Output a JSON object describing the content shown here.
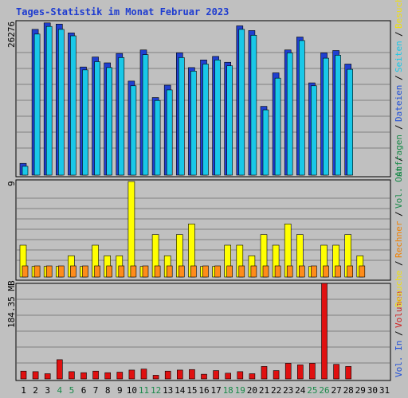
{
  "chart_data": [
    {
      "type": "bar",
      "title": "Tages-Statistik im Monat Februar 2023",
      "ylabel_max": "26276",
      "right_legend": [
        {
          "text": "Anfragen",
          "color": "#1a8a4a"
        },
        {
          "text": "/",
          "color": "#000000"
        },
        {
          "text": "Dateien",
          "color": "#1f4fd8"
        },
        {
          "text": "/",
          "color": "#000000"
        },
        {
          "text": "Seiten",
          "color": "#19c8e8"
        },
        {
          "text": "/",
          "color": "#000000"
        },
        {
          "text": "Besuche",
          "color": "#f0e010"
        }
      ],
      "series": [
        {
          "name": "Anfragen",
          "color": "#2040d0",
          "values": [
            2000,
            24800,
            25900,
            25700,
            24200,
            18400,
            20100,
            19100,
            20700,
            16000,
            21300,
            13200,
            15300,
            20800,
            18300,
            19600,
            20200,
            19200,
            25400,
            24600,
            11700,
            17400,
            21300,
            23500,
            15700,
            20800,
            21200,
            18900
          ]
        },
        {
          "name": "Seiten",
          "color": "#19c8e8",
          "values": [
            1500,
            24000,
            25300,
            24800,
            23700,
            17900,
            19300,
            18300,
            20000,
            15200,
            20500,
            12700,
            14500,
            20000,
            17700,
            18900,
            19600,
            18600,
            24800,
            23800,
            11100,
            16500,
            20800,
            22900,
            15200,
            19900,
            20400,
            18000
          ]
        }
      ],
      "categories": [
        "1",
        "2",
        "3",
        "4",
        "5",
        "6",
        "7",
        "8",
        "9",
        "10",
        "11",
        "12",
        "13",
        "14",
        "15",
        "16",
        "17",
        "18",
        "19",
        "20",
        "21",
        "22",
        "23",
        "24",
        "25",
        "26",
        "27",
        "28"
      ]
    },
    {
      "type": "bar",
      "ylabel_max": "9",
      "right_legend": [
        {
          "text": "Besuche",
          "color": "#f0e010"
        },
        {
          "text": "/",
          "color": "#000000"
        },
        {
          "text": "Rechner",
          "color": "#f08000"
        },
        {
          "text": "/",
          "color": "#000000"
        },
        {
          "text": "Vol. Out",
          "color": "#1a8a4a"
        },
        {
          "text": "/",
          "color": "#000000"
        }
      ],
      "series": [
        {
          "name": "Besuche",
          "color": "#ffff00",
          "values": [
            3,
            1,
            1,
            1,
            2,
            1,
            3,
            2,
            2,
            9,
            1,
            4,
            2,
            4,
            5,
            1,
            1,
            3,
            3,
            2,
            4,
            3,
            5,
            4,
            1,
            3,
            3,
            4,
            2
          ]
        },
        {
          "name": "Rechner",
          "color": "#ff8c1a",
          "values": [
            1,
            1,
            1,
            1,
            1,
            1,
            1,
            1,
            1,
            1,
            1,
            1,
            1,
            1,
            1,
            1,
            1,
            1,
            1,
            1,
            1,
            1,
            1,
            1,
            1,
            1,
            1,
            1,
            1
          ]
        }
      ]
    },
    {
      "type": "bar",
      "ylabel_max": "184.35 MB",
      "right_legend": [
        {
          "text": "Vol. In",
          "color": "#1f4fd8"
        },
        {
          "text": "/",
          "color": "#000000"
        },
        {
          "text": "Volumen",
          "color": "#d02020"
        }
      ],
      "series": [
        {
          "name": "Volumen",
          "color": "#e01010",
          "values": [
            15,
            14,
            10,
            37,
            14,
            12,
            15,
            12,
            13,
            17,
            19,
            7,
            15,
            17,
            18,
            9,
            16,
            11,
            14,
            10,
            24,
            16,
            30,
            27,
            30,
            184,
            28,
            24
          ]
        }
      ],
      "x_ticks": [
        "1",
        "2",
        "3",
        "4",
        "5",
        "6",
        "7",
        "8",
        "9",
        "10",
        "11",
        "12",
        "13",
        "14",
        "15",
        "16",
        "17",
        "18",
        "19",
        "20",
        "21",
        "22",
        "23",
        "24",
        "25",
        "26",
        "27",
        "28",
        "29",
        "30",
        "31"
      ],
      "weekend_days": [
        4,
        5,
        11,
        12,
        18,
        19,
        25,
        26
      ]
    }
  ]
}
